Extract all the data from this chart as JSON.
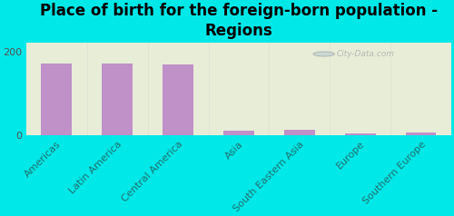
{
  "title": "Place of birth for the foreign-born population -\nRegions",
  "categories": [
    "Americas",
    "Latin America",
    "Central America",
    "Asia",
    "South Eastern Asia",
    "Europe",
    "Southern Europe"
  ],
  "values": [
    171,
    170,
    169,
    10,
    12,
    5,
    6
  ],
  "bar_color": "#c090c8",
  "background_color": "#00e8e8",
  "plot_bg_color": "#e8edd8",
  "ylim": [
    0,
    220
  ],
  "yticks": [
    0,
    200
  ],
  "watermark": "City-Data.com",
  "title_fontsize": 12,
  "tick_fontsize": 8,
  "tick_color": "#207070"
}
